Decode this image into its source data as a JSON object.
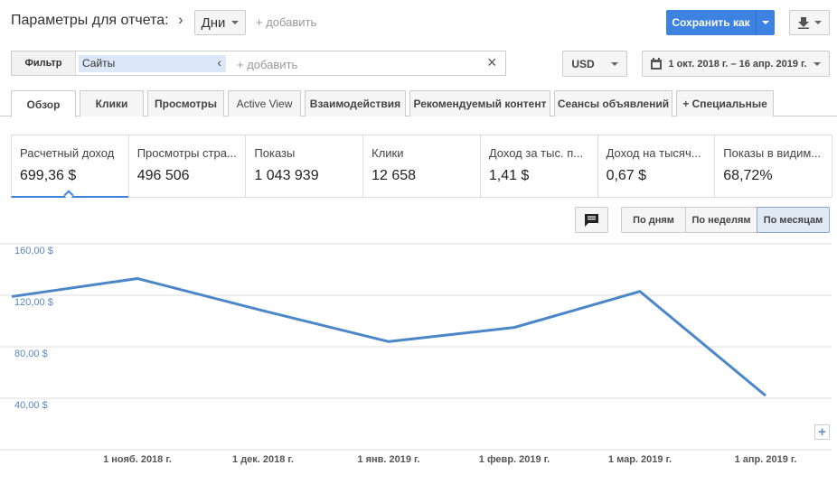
{
  "header": {
    "title": "Параметры для отчета:",
    "period": "Дни",
    "add": "+ добавить",
    "save": "Сохранить как"
  },
  "filter": {
    "label": "Фильтр",
    "chip": "Сайты",
    "add": "+ добавить",
    "currency": "USD",
    "date_range": "1 окт. 2018 г. – 16 апр. 2019 г."
  },
  "tabs": [
    "Обзор",
    "Клики",
    "Просмотры",
    "Active View",
    "Взаимодействия",
    "Рекомендуемый контент",
    "Сеансы объявлений",
    "+ Специальные"
  ],
  "metrics": [
    {
      "label": "Расчетный доход",
      "value": "699,36 $"
    },
    {
      "label": "Просмотры стра...",
      "value": "496 506"
    },
    {
      "label": "Показы",
      "value": "1 043 939"
    },
    {
      "label": "Клики",
      "value": "12 658"
    },
    {
      "label": "Доход за тыс. п...",
      "value": "1,41 $"
    },
    {
      "label": "Доход на тысяч...",
      "value": "0,67 $"
    },
    {
      "label": "Показы в видим...",
      "value": "68,72%"
    }
  ],
  "granularity": [
    "По дням",
    "По неделям",
    "По месяцам"
  ],
  "chart_data": {
    "type": "line",
    "categories": [
      null,
      "1 нояб. 2018 г.",
      "1 дек. 2018 г.",
      "1 янв. 2019 г.",
      "1 февр. 2019 г.",
      "1 мар. 2019 г.",
      "1 апр. 2019 г."
    ],
    "values": [
      119,
      133,
      108,
      84,
      95,
      123,
      42
    ],
    "color": "#4a86c8",
    "ylim": [
      0,
      160
    ],
    "yticks": [
      {
        "value": 40,
        "label": "40,00 $"
      },
      {
        "value": 80,
        "label": "80,00 $"
      },
      {
        "value": 120,
        "label": "120,00 $"
      },
      {
        "value": 160,
        "label": "160,00 $"
      }
    ],
    "grid": true
  }
}
